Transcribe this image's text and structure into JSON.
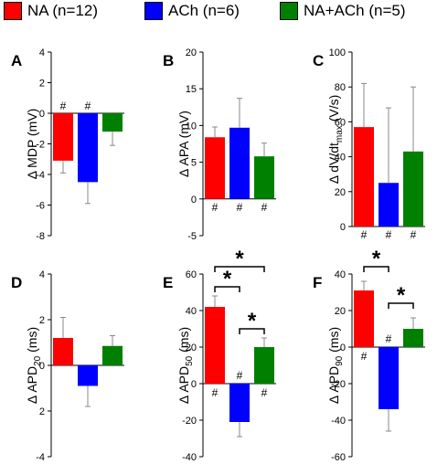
{
  "legend": {
    "items": [
      {
        "label": "NA (n=12)",
        "color": "#ff0000"
      },
      {
        "label": "ACh (n=6)",
        "color": "#0000ff"
      },
      {
        "label": "NA+ACh (n=5)",
        "color": "#008000"
      }
    ]
  },
  "chart_data": [
    {
      "panel": "A",
      "type": "bar",
      "ylabel": "Δ MDP (mV)",
      "ylim": [
        -8,
        4
      ],
      "yticks": [
        "4",
        "2",
        "0",
        "-2",
        "-4",
        "-6",
        "-8"
      ],
      "categories": [
        "NA",
        "ACh",
        "NA+ACh"
      ],
      "values": [
        -3.1,
        -4.5,
        -1.2
      ],
      "errors": [
        0.8,
        1.4,
        0.9
      ],
      "markers": [
        "#",
        "#",
        ""
      ],
      "marker_side": "above_zero",
      "significance": []
    },
    {
      "panel": "B",
      "type": "bar",
      "ylabel": "Δ APA (mV)",
      "ylim": [
        -5,
        20
      ],
      "yticks": [
        "20",
        "15",
        "10",
        "5",
        "0",
        "-5"
      ],
      "categories": [
        "NA",
        "ACh",
        "NA+ACh"
      ],
      "values": [
        8.4,
        9.7,
        5.8
      ],
      "errors": [
        1.4,
        4.0,
        1.8
      ],
      "markers": [
        "#",
        "#",
        "#"
      ],
      "marker_side": "below_zero",
      "significance": []
    },
    {
      "panel": "C",
      "type": "bar",
      "ylabel": "Δ dV/dt",
      "ylabel_sub": "max",
      "ylabel_tail": " (V/s)",
      "ylim": [
        0,
        100
      ],
      "yticks": [
        "100",
        "80",
        "60",
        "40",
        "20",
        "0"
      ],
      "categories": [
        "NA",
        "ACh",
        "NA+ACh"
      ],
      "values": [
        57,
        25,
        43
      ],
      "errors": [
        25,
        43,
        37
      ],
      "markers": [
        "#",
        "#",
        "#"
      ],
      "marker_side": "below_zero",
      "significance": []
    },
    {
      "panel": "D",
      "type": "bar",
      "ylabel": "Δ APD",
      "ylabel_sub": "20",
      "ylabel_tail": " (ms)",
      "ylim": [
        -4,
        4
      ],
      "yticks": [
        "4",
        "2",
        "0",
        "2",
        "-4"
      ],
      "categories": [
        "NA",
        "ACh",
        "NA+ACh"
      ],
      "values": [
        1.2,
        -0.9,
        0.85
      ],
      "errors": [
        0.9,
        0.9,
        0.45
      ],
      "markers": [
        "",
        "",
        ""
      ],
      "marker_side": "none",
      "significance": []
    },
    {
      "panel": "E",
      "type": "bar",
      "ylabel": "Δ APD",
      "ylabel_sub": "50",
      "ylabel_tail": " (ms)",
      "ylim": [
        -40,
        60
      ],
      "yticks": [
        "60",
        "40",
        "20",
        "0",
        "-20",
        "-40"
      ],
      "categories": [
        "NA",
        "ACh",
        "NA+ACh"
      ],
      "values": [
        42,
        -21,
        20
      ],
      "errors": [
        6,
        8,
        5
      ],
      "markers": [
        "#",
        "#",
        "#"
      ],
      "marker_side": "opposite",
      "significance": [
        {
          "from": 0,
          "to": 1,
          "label": "*",
          "y": 53
        },
        {
          "from": 0,
          "to": 2,
          "label": "*",
          "y": 64
        },
        {
          "from": 1,
          "to": 2,
          "label": "*",
          "y": 30
        }
      ]
    },
    {
      "panel": "F",
      "type": "bar",
      "ylabel": "Δ APD",
      "ylabel_sub": "90",
      "ylabel_tail": " (ms)",
      "ylim": [
        -60,
        40
      ],
      "yticks": [
        "40",
        "20",
        "0",
        "-20",
        "-40",
        "-60"
      ],
      "categories": [
        "NA",
        "ACh",
        "NA+ACh"
      ],
      "values": [
        31,
        -34,
        10
      ],
      "errors": [
        5,
        12,
        6
      ],
      "markers": [
        "#",
        "#",
        ""
      ],
      "marker_side": "opposite",
      "significance": [
        {
          "from": 0,
          "to": 1,
          "label": "*",
          "y": 44
        },
        {
          "from": 1,
          "to": 2,
          "label": "*",
          "y": 24
        }
      ]
    }
  ]
}
